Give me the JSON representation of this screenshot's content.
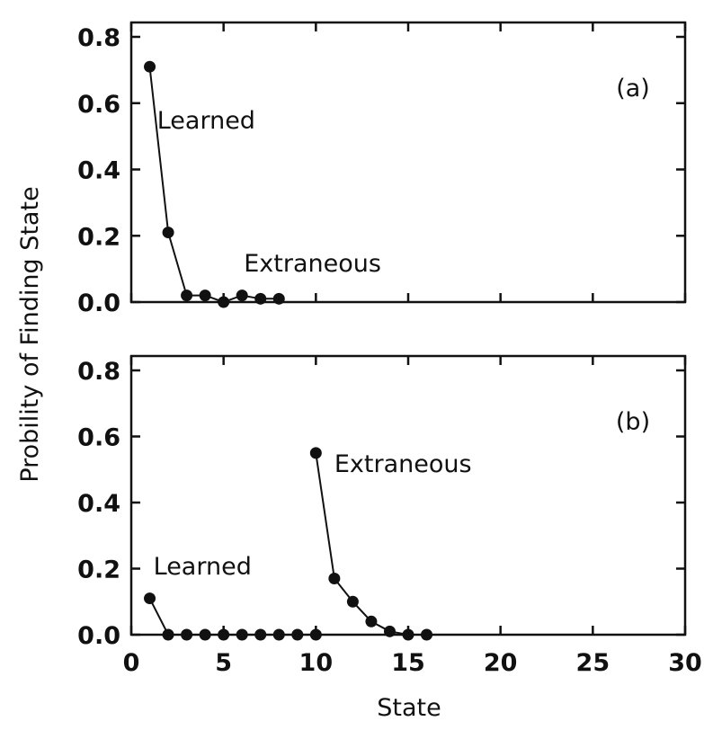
{
  "chart_data": [
    {
      "type": "line",
      "panel_label": "(a)",
      "ylabel": "Probility of Finding State",
      "xlim": [
        0,
        30
      ],
      "ylim": [
        0,
        0.8
      ],
      "x_ticks": [
        0,
        5,
        10,
        15,
        20,
        25,
        30
      ],
      "y_ticks": [
        "0.0",
        "0.2",
        "0.4",
        "0.6",
        "0.8"
      ],
      "grid": false,
      "annotations": [
        {
          "text": "Learned",
          "x": 1.4,
          "y": 0.55
        },
        {
          "text": "Extraneous",
          "x": 6.1,
          "y": 0.12
        }
      ],
      "series": [
        {
          "x": [
            1,
            2,
            3,
            4,
            5,
            6,
            7,
            8
          ],
          "values": [
            0.71,
            0.21,
            0.02,
            0.02,
            0.0,
            0.02,
            0.01,
            0.01
          ]
        }
      ]
    },
    {
      "type": "line",
      "panel_label": "(b)",
      "xlabel": "State",
      "xlim": [
        0,
        30
      ],
      "ylim": [
        0,
        0.8
      ],
      "x_ticks": [
        0,
        5,
        10,
        15,
        20,
        25,
        30
      ],
      "y_ticks": [
        "0.0",
        "0.2",
        "0.4",
        "0.6",
        "0.8"
      ],
      "grid": false,
      "annotations": [
        {
          "text": "Learned",
          "x": 1.2,
          "y": 0.21
        },
        {
          "text": "Extraneous",
          "x": 11.0,
          "y": 0.52
        }
      ],
      "series": [
        {
          "x": [
            1,
            2,
            3,
            4,
            5,
            6,
            7,
            8,
            9,
            10
          ],
          "values": [
            0.11,
            0.0,
            0.0,
            0.0,
            0.0,
            0.0,
            0.0,
            0.0,
            0.0,
            0.0
          ]
        },
        {
          "x": [
            10,
            11,
            12,
            13,
            14,
            15,
            16
          ],
          "values": [
            0.55,
            0.17,
            0.1,
            0.04,
            0.01,
            0.0,
            0.0
          ]
        }
      ]
    }
  ]
}
